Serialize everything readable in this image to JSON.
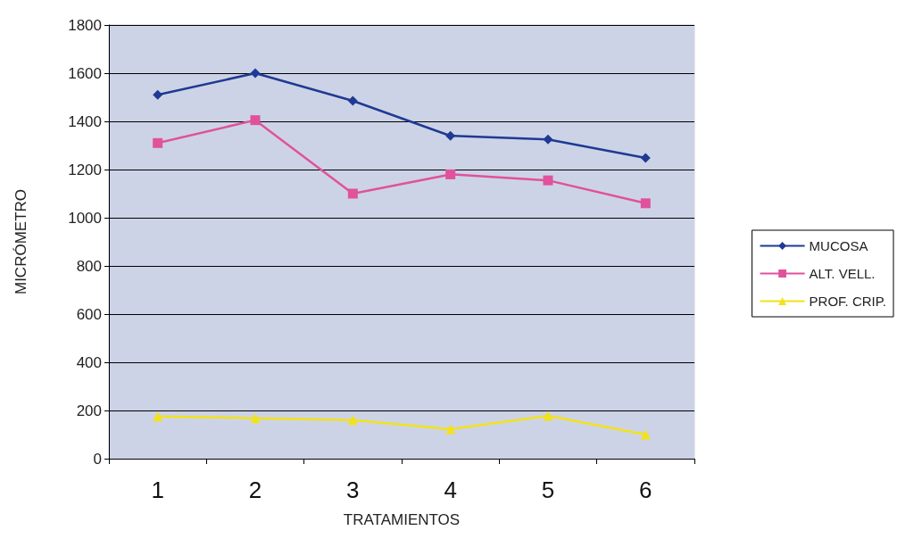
{
  "chart_data": {
    "type": "line",
    "xlabel": "TRATAMIENTOS",
    "ylabel": "MICRÓMETRO",
    "categories": [
      "1",
      "2",
      "3",
      "4",
      "5",
      "6"
    ],
    "series": [
      {
        "name": "MUCOSA",
        "color": "#1f3a93",
        "marker": "diamond",
        "values": [
          1510,
          1600,
          1485,
          1340,
          1325,
          1248
        ]
      },
      {
        "name": "ALT. VELL.",
        "color": "#e0529c",
        "marker": "square",
        "values": [
          1310,
          1405,
          1100,
          1180,
          1155,
          1060
        ]
      },
      {
        "name": "PROF. CRIP.",
        "color": "#f2e21a",
        "marker": "triangle",
        "values": [
          175,
          168,
          160,
          122,
          178,
          100
        ]
      }
    ],
    "ylim": [
      0,
      1800
    ],
    "yticks": [
      0,
      200,
      400,
      600,
      800,
      1000,
      1200,
      1400,
      1600,
      1800
    ],
    "grid": "y",
    "legend": "right"
  }
}
